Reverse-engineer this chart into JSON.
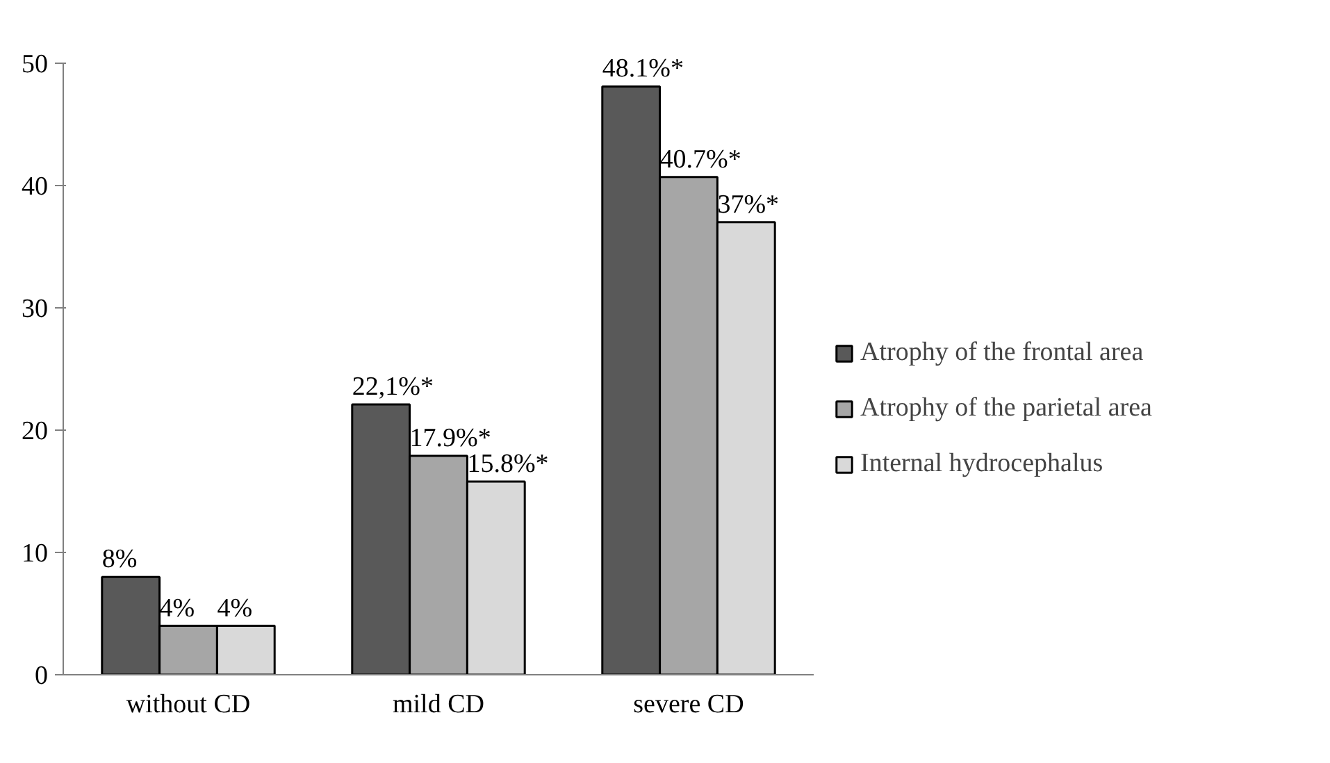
{
  "chart_data": {
    "type": "bar",
    "categories": [
      "without CD",
      "mild CD",
      "severe CD"
    ],
    "series": [
      {
        "name": "Atrophy of the frontal area",
        "color": "#595959",
        "values": [
          8,
          22.1,
          48.1
        ],
        "value_labels": [
          "8%",
          "22,1%*",
          "48.1%*"
        ]
      },
      {
        "name": "Atrophy of the parietal area",
        "color": "#a6a6a6",
        "values": [
          4,
          17.9,
          40.7
        ],
        "value_labels": [
          "4%",
          "17.9%*",
          "40.7%*"
        ]
      },
      {
        "name": "Internal hydrocephalus",
        "color": "#d9d9d9",
        "values": [
          4,
          15.8,
          37
        ],
        "value_labels": [
          "4%",
          "15.8%*",
          "37%*"
        ]
      }
    ],
    "ylim": [
      0,
      50
    ],
    "yticks": [
      0,
      10,
      20,
      30,
      40,
      50
    ],
    "grid": false,
    "legend": "right"
  }
}
